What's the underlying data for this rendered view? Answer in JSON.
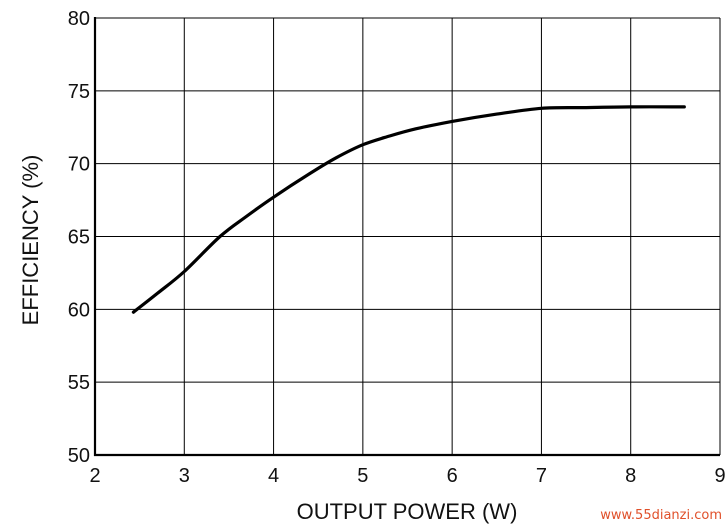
{
  "chart_data": {
    "type": "line",
    "title": "",
    "xlabel": "OUTPUT POWER (W)",
    "ylabel": "EFFICIENCY (%)",
    "xlim": [
      2,
      9
    ],
    "ylim": [
      50,
      80
    ],
    "xticks": [
      2,
      3,
      4,
      5,
      6,
      7,
      8,
      9
    ],
    "yticks": [
      50,
      55,
      60,
      65,
      70,
      75,
      80
    ],
    "grid": true,
    "legend": "none",
    "series": [
      {
        "color": "#000000",
        "x": [
          2.43,
          2.7,
          3.0,
          3.4,
          3.7,
          4.0,
          4.4,
          4.7,
          5.0,
          5.3,
          5.6,
          6.0,
          6.5,
          7.0,
          7.5,
          8.0,
          8.6
        ],
        "y": [
          59.8,
          61.1,
          62.6,
          65.0,
          66.4,
          67.7,
          69.3,
          70.4,
          71.3,
          71.9,
          72.4,
          72.9,
          73.4,
          73.8,
          73.85,
          73.9,
          73.9
        ]
      }
    ]
  },
  "watermark": {
    "text": "www.55dianzi.com",
    "color": "#e0502a"
  }
}
